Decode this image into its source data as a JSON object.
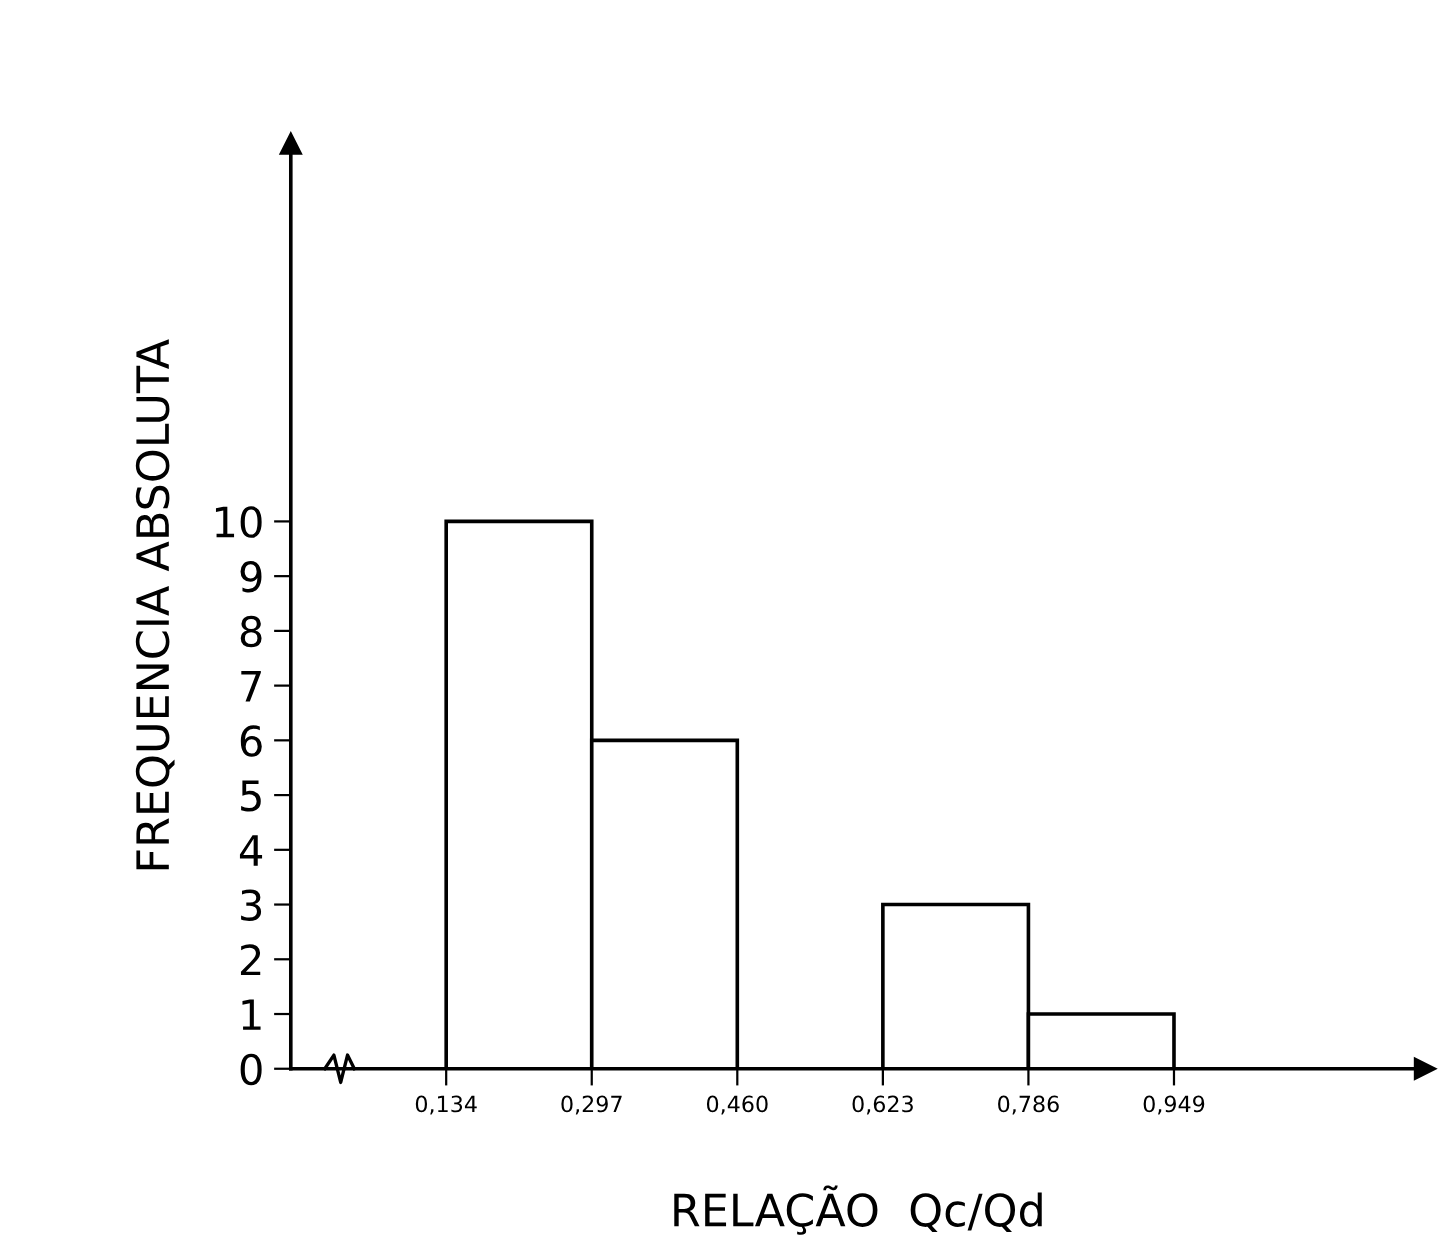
{
  "chart_data": {
    "type": "histogram",
    "xlabel": "RELAÇÃO  Qc/Qd",
    "ylabel": "FREQUENCIA ABSOLUTA",
    "bins": [
      0.134,
      0.297,
      0.46,
      0.623,
      0.786,
      0.949
    ],
    "values": [
      10,
      6,
      0,
      3,
      1
    ],
    "color": "#ffffff",
    "xlim": [
      -0.04,
      1.23
    ],
    "ylim": [
      0,
      16.9
    ],
    "xticks": [
      {
        "value": 0.134,
        "label": "0,134"
      },
      {
        "value": 0.297,
        "label": "0,297"
      },
      {
        "value": 0.46,
        "label": "0,460"
      },
      {
        "value": 0.623,
        "label": "0,623"
      },
      {
        "value": 0.786,
        "label": "0,786"
      },
      {
        "value": 0.949,
        "label": "0,949"
      }
    ],
    "yticks": [
      0,
      1,
      2,
      3,
      4,
      5,
      6,
      7,
      8,
      9,
      10
    ],
    "grid": false,
    "legend": false
  }
}
